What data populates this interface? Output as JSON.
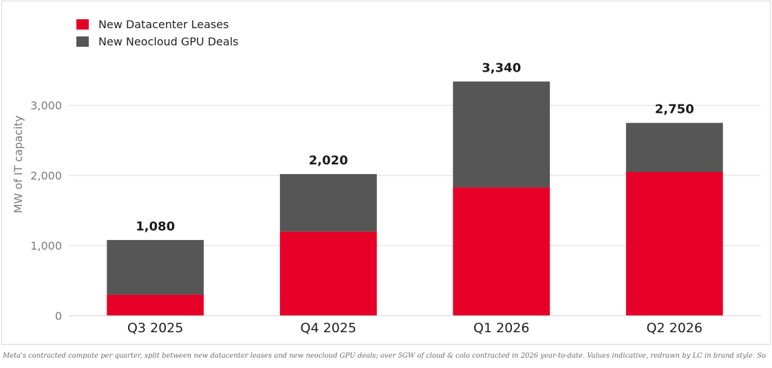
{
  "chart_data": {
    "type": "bar",
    "stacked": true,
    "title": "",
    "xlabel": "",
    "ylabel": "MW of IT capacity",
    "ylim": [
      0,
      3600
    ],
    "yticks": [
      0,
      1000,
      2000,
      3000
    ],
    "ytick_labels": [
      "0",
      "1,000",
      "2,000",
      "3,000"
    ],
    "grid": "horizontal",
    "legend_position": "top-left",
    "categories": [
      "Q3 2025",
      "Q4 2025",
      "Q1 2026",
      "Q2 2026"
    ],
    "series": [
      {
        "name": "New Datacenter Leases",
        "color": "#e60028",
        "values": [
          300,
          1200,
          1830,
          2050
        ]
      },
      {
        "name": "New Neocloud GPU Deals",
        "color": "#565656",
        "values": [
          780,
          820,
          1510,
          700
        ]
      }
    ],
    "totals": [
      1080,
      2020,
      3340,
      2750
    ],
    "total_labels": [
      "1,080",
      "2,020",
      "3,340",
      "2,750"
    ]
  },
  "caption": "Meta's contracted compute per quarter, split between new datacenter leases and new neocloud GPU deals; over 5GW of cloud & colo contracted in 2026 year-to-date. Values indicative, redrawn by LC in brand style. Source: SemiAnalysis."
}
